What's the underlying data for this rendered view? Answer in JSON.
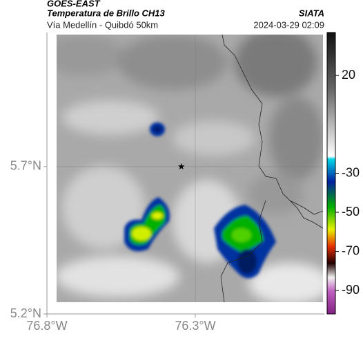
{
  "header": {
    "title": "GOES-EAST",
    "subtitle": "Temperatura de Brillo CH13",
    "source": "SIATA",
    "region": "Vía Medellín - Quibdó 50km",
    "timestamp": "2024-03-29 02:09"
  },
  "map": {
    "xlim": [
      -76.8,
      -75.865
    ],
    "ylim": [
      5.2,
      6.155
    ],
    "xticks": [
      {
        "value": -76.8,
        "label": "76.8°W"
      },
      {
        "value": -76.3,
        "label": "76.3°W"
      }
    ],
    "yticks": [
      {
        "value": 5.2,
        "label": "5.2°N"
      },
      {
        "value": 5.7,
        "label": "5.7°N"
      }
    ],
    "grid": true,
    "location": {
      "lon": -76.347,
      "lat": 5.7
    }
  },
  "colorbar": {
    "clim": [
      -102,
      42
    ],
    "ticks": [
      20,
      -30,
      -50,
      -70,
      -90
    ]
  }
}
